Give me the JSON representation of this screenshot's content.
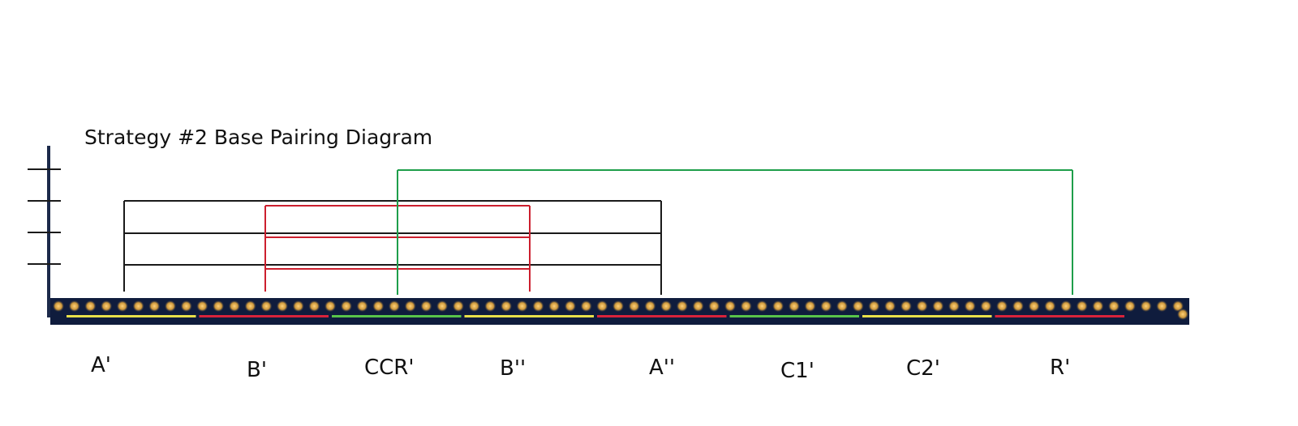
{
  "title": "Strategy #2 Base Pairing Diagram",
  "colors": {
    "black_pairs": "#1a1a1a",
    "red_pairs": "#cc1f2e",
    "green_pairs": "#1e9e4a",
    "axis": "#1c2a4a",
    "strand_background": "#0f1c3d",
    "bead_core": "#ffd27a",
    "bead_glow": "#e3a63c",
    "yellow_segment": "#e8e04a",
    "red_segment": "#d8233b",
    "green_segment": "#58c44a"
  },
  "bead_count": 71,
  "segments": [
    {
      "label": "A'",
      "color": "yellow"
    },
    {
      "label": "B'",
      "color": "red"
    },
    {
      "label": "CCR'",
      "color": "green"
    },
    {
      "label": "B''",
      "color": "yellow"
    },
    {
      "label": "A''",
      "color": "red"
    },
    {
      "label": "C1'",
      "color": "green"
    },
    {
      "label": "C2'",
      "color": "yellow"
    },
    {
      "label": "R'",
      "color": "red"
    }
  ]
}
